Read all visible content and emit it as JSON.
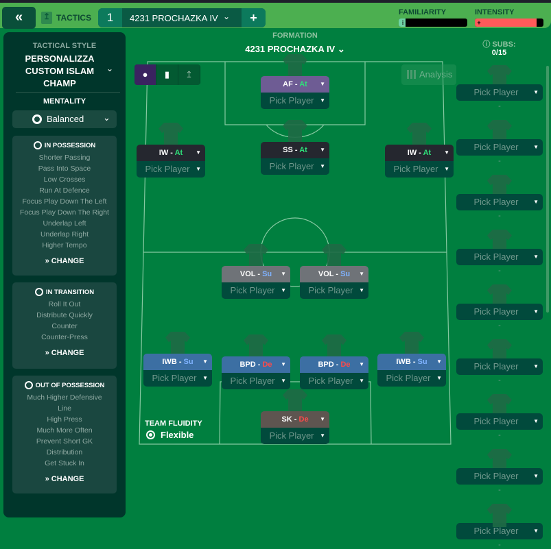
{
  "topbar": {
    "back_icon": "double-chevron-left",
    "tactics_label": "TACTICS",
    "tactic_slot": "1",
    "tactic_name": "4231 PROCHAZKA IV",
    "add_label": "+",
    "familiarity": {
      "label": "FAMILIARITY",
      "level": 0.1,
      "color": "#6fd3a6"
    },
    "intensity": {
      "label": "INTENSITY",
      "level": 0.9,
      "color": "#ff5a5a"
    }
  },
  "sidebar": {
    "style_label": "TACTICAL STYLE",
    "style_name": "PERSONALIZZA CUSTOM ISLAM CHAMP",
    "mentality_label": "MENTALITY",
    "mentality": "Balanced",
    "panels": [
      {
        "title": "IN POSSESSION",
        "items": [
          "Shorter Passing",
          "Pass Into Space",
          "Low Crosses",
          "Run At Defence",
          "Focus Play Down The Left",
          "Focus Play Down The Right",
          "Underlap Left",
          "Underlap Right",
          "Higher Tempo"
        ],
        "change": "CHANGE"
      },
      {
        "title": "IN TRANSITION",
        "items": [
          "Roll It Out",
          "Distribute Quickly",
          "Counter",
          "Counter-Press"
        ],
        "change": "CHANGE"
      },
      {
        "title": "OUT OF POSSESSION",
        "items": [
          "Much Higher Defensive",
          "Line",
          "High Press",
          "Much More Often",
          "Prevent Short GK",
          "Distribution",
          "Get Stuck In"
        ],
        "change": "CHANGE"
      }
    ]
  },
  "formation": {
    "label": "FORMATION",
    "name": "4231 PROCHAZKA IV",
    "analysis": "Analysis"
  },
  "positions": [
    {
      "role": "AF",
      "duty": "At",
      "player": "Pick Player",
      "color": "#6e5c94"
    },
    {
      "role": "SS",
      "duty": "At",
      "player": "Pick Player",
      "color": "#25272f"
    },
    {
      "role": "IW",
      "duty": "At",
      "player": "Pick Player",
      "color": "#25272f"
    },
    {
      "role": "IW",
      "duty": "At",
      "player": "Pick Player",
      "color": "#25272f"
    },
    {
      "role": "VOL",
      "duty": "Su",
      "player": "Pick Player",
      "color": "#6f7378"
    },
    {
      "role": "VOL",
      "duty": "Su",
      "player": "Pick Player",
      "color": "#6f7378"
    },
    {
      "role": "IWB",
      "duty": "Su",
      "player": "Pick Player",
      "color": "#3c6fa3"
    },
    {
      "role": "BPD",
      "duty": "De",
      "player": "Pick Player",
      "color": "#3c6fa3"
    },
    {
      "role": "BPD",
      "duty": "De",
      "player": "Pick Player",
      "color": "#3c6fa3"
    },
    {
      "role": "IWB",
      "duty": "Su",
      "player": "Pick Player",
      "color": "#3c6fa3"
    },
    {
      "role": "SK",
      "duty": "De",
      "player": "Pick Player",
      "color": "#5e5550"
    }
  ],
  "duty_colors": {
    "At": "#2fe07a",
    "Su": "#7fb2ff",
    "De": "#ff4a4a"
  },
  "fluidity": {
    "label": "TEAM FLUIDITY",
    "value": "Flexible"
  },
  "subs": {
    "label": "SUBS:",
    "count": "0/15",
    "slots": [
      "Pick Player",
      "Pick Player",
      "Pick Player",
      "Pick Player",
      "Pick Player",
      "Pick Player",
      "Pick Player",
      "Pick Player",
      "Pick Player"
    ],
    "empty": "-"
  }
}
